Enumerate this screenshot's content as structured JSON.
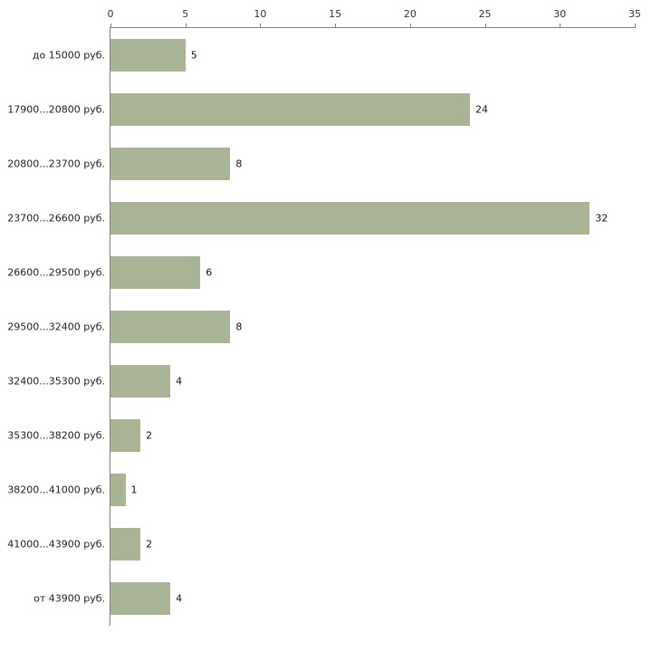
{
  "chart_data": {
    "type": "bar",
    "orientation": "horizontal",
    "title": "",
    "xlabel": "",
    "ylabel": "",
    "categories": [
      "до 15000 руб.",
      "17900...20800 руб.",
      "20800...23700 руб.",
      "23700...26600 руб.",
      "26600...29500 руб.",
      "29500...32400 руб.",
      "32400...35300 руб.",
      "35300...38200 руб.",
      "38200...41000 руб.",
      "41000...43900 руб.",
      "от 43900 руб."
    ],
    "values": [
      5,
      24,
      8,
      32,
      6,
      8,
      4,
      2,
      1,
      2,
      4
    ],
    "xlim": [
      0,
      35
    ],
    "x_ticks": [
      0,
      5,
      10,
      15,
      20,
      25,
      30,
      35
    ],
    "grid": false,
    "legend": "none",
    "value_labels": true,
    "colors": {
      "bar": "#a9b497",
      "axis": "#808080",
      "tick_text": "#333333",
      "category_text": "#222222",
      "value_text": "#111111",
      "background": "#ffffff"
    }
  }
}
